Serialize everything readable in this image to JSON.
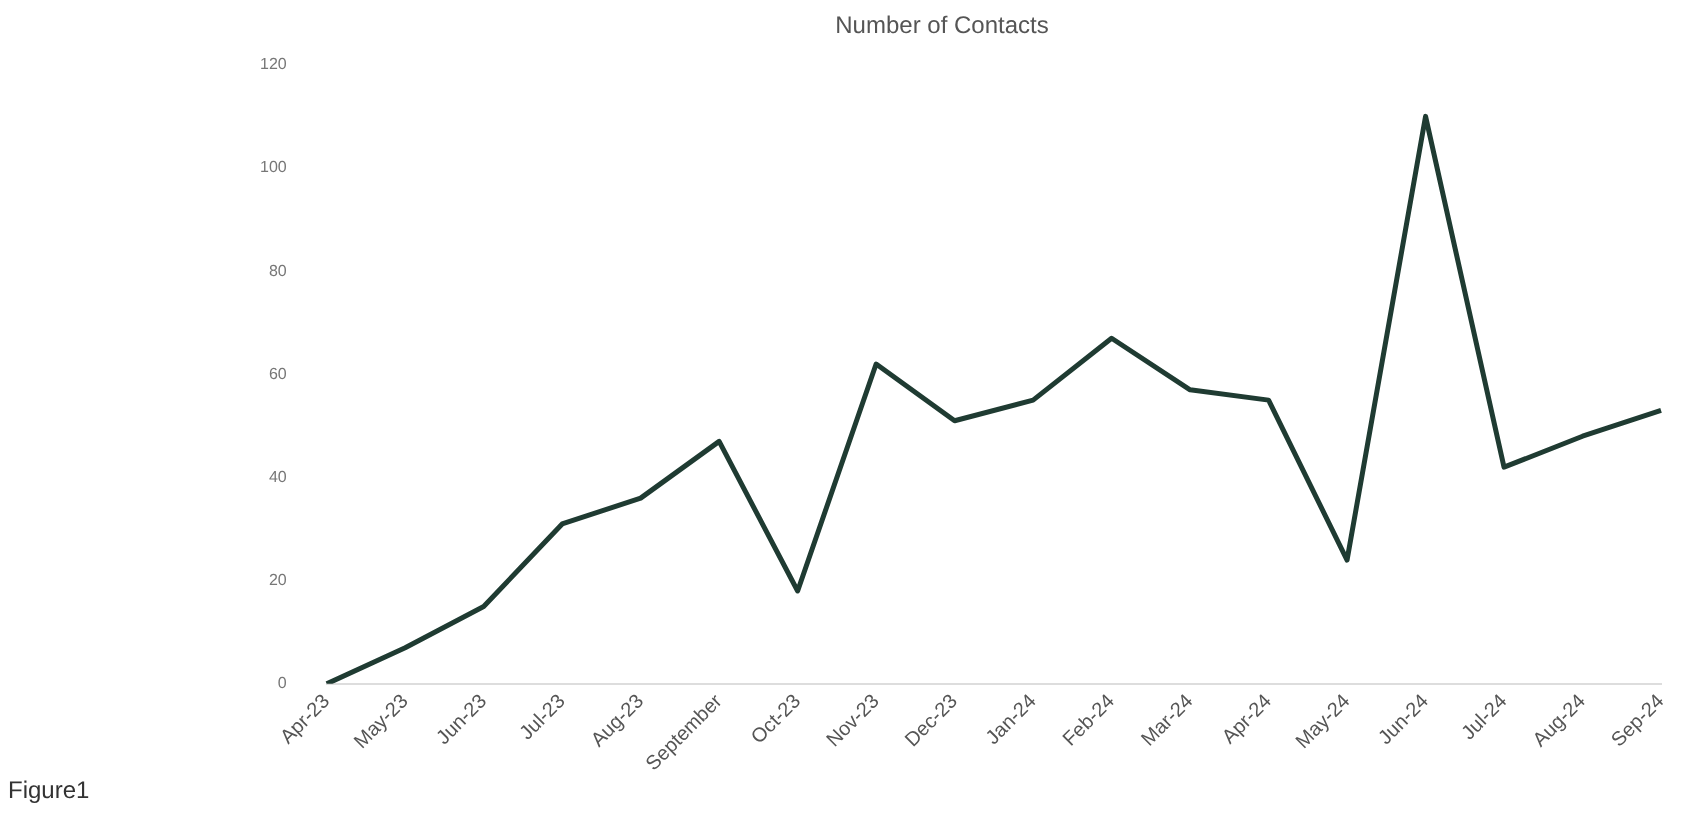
{
  "chart_data": {
    "type": "line",
    "title": "Number of Contacts",
    "categories": [
      "Apr-23",
      "May-23",
      "Jun-23",
      "Jul-23",
      "Aug-23",
      "September",
      "Oct-23",
      "Nov-23",
      "Dec-23",
      "Jan-24",
      "Feb-24",
      "Mar-24",
      "Apr-24",
      "May-24",
      "Jun-24",
      "Jul-24",
      "Aug-24",
      "Sep-24"
    ],
    "series": [
      {
        "color": "#1f3b32",
        "values": [
          0,
          7,
          15,
          31,
          36,
          47,
          18,
          62,
          51,
          55,
          67,
          57,
          55,
          24,
          110,
          42,
          48,
          53
        ]
      }
    ],
    "ylim": [
      0,
      120
    ],
    "yticks": [
      0,
      20,
      40,
      60,
      80,
      100,
      120
    ],
    "grid": false,
    "legend": false,
    "marker": "none",
    "annotations": [
      "Figure1"
    ]
  }
}
